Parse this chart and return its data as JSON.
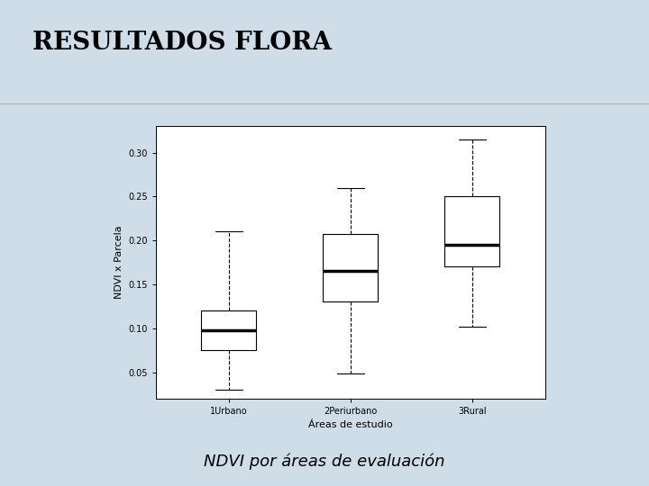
{
  "title": "RESULTADOS FLORA",
  "subtitle": "NDVI por áreas de evaluación",
  "categories": [
    "1Urbano",
    "2Periurbano",
    "3Rural"
  ],
  "xlabel": "Áreas de estudio",
  "ylabel": "NDVI x Parcela",
  "background_color": "#cfdde8",
  "plot_area_bg": "#dce8f2",
  "white_bg": "#ffffff",
  "boxplot_data": {
    "1Urbano": {
      "whislo": 0.03,
      "q1": 0.075,
      "med": 0.098,
      "q3": 0.12,
      "whishi": 0.21
    },
    "2Periurbano": {
      "whislo": 0.048,
      "q1": 0.13,
      "med": 0.165,
      "q3": 0.207,
      "whishi": 0.26
    },
    "3Rural": {
      "whislo": 0.102,
      "q1": 0.17,
      "med": 0.195,
      "q3": 0.25,
      "whishi": 0.315
    }
  },
  "ylim": [
    0.02,
    0.33
  ],
  "yticks": [
    0.05,
    0.1,
    0.15,
    0.2,
    0.25,
    0.3
  ],
  "title_fontsize": 20,
  "subtitle_fontsize": 13,
  "axis_label_fontsize": 8,
  "tick_fontsize": 7
}
